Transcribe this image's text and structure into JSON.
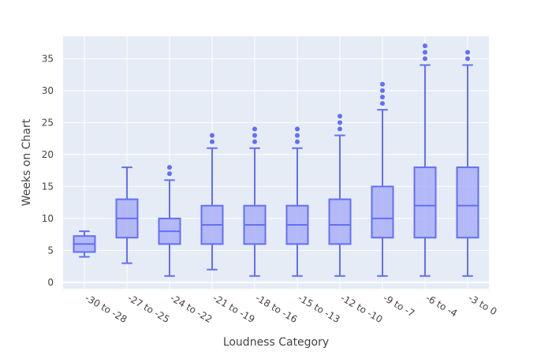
{
  "chart_data": {
    "type": "box",
    "title": "",
    "xlabel": "Loudness Category",
    "ylabel": "Weeks on Chart",
    "ylim": [
      -1,
      38.5
    ],
    "y_ticks": [
      0,
      5,
      10,
      15,
      20,
      25,
      30,
      35
    ],
    "grid": true,
    "legend": "none",
    "colors": {
      "box_line": "#636efa",
      "box_fill": "#aab0f7",
      "plot_bg": "#e5ecf6",
      "grid": "#ffffff",
      "text": "#444444"
    },
    "categories": [
      "-30 to -28",
      "-27 to -25",
      "-24 to -22",
      "-21 to -19",
      "-18 to -16",
      "-15 to -13",
      "-12 to -10",
      "-9 to -7",
      "-6 to -4",
      "-3 to 0"
    ],
    "boxes": [
      {
        "min": 4,
        "q1": 4.75,
        "median": 6,
        "q3": 7.25,
        "max": 8,
        "outliers": []
      },
      {
        "min": 3,
        "q1": 7,
        "median": 10,
        "q3": 13,
        "max": 18,
        "outliers": []
      },
      {
        "min": 1,
        "q1": 6,
        "median": 8,
        "q3": 10,
        "max": 16,
        "outliers": [
          17,
          18
        ]
      },
      {
        "min": 2,
        "q1": 6,
        "median": 9,
        "q3": 12,
        "max": 21,
        "outliers": [
          22,
          23
        ]
      },
      {
        "min": 1,
        "q1": 6,
        "median": 9,
        "q3": 12,
        "max": 21,
        "outliers": [
          22,
          23,
          24
        ]
      },
      {
        "min": 1,
        "q1": 6,
        "median": 9,
        "q3": 12,
        "max": 21,
        "outliers": [
          22,
          23,
          24
        ]
      },
      {
        "min": 1,
        "q1": 6,
        "median": 9,
        "q3": 13,
        "max": 23,
        "outliers": [
          24,
          25,
          26
        ]
      },
      {
        "min": 1,
        "q1": 7,
        "median": 10,
        "q3": 15,
        "max": 27,
        "outliers": [
          28,
          29,
          30,
          31
        ]
      },
      {
        "min": 1,
        "q1": 7,
        "median": 12,
        "q3": 18,
        "max": 34,
        "outliers": [
          35,
          36,
          37
        ]
      },
      {
        "min": 1,
        "q1": 7,
        "median": 12,
        "q3": 18,
        "max": 34,
        "outliers": [
          35,
          36
        ]
      }
    ]
  }
}
